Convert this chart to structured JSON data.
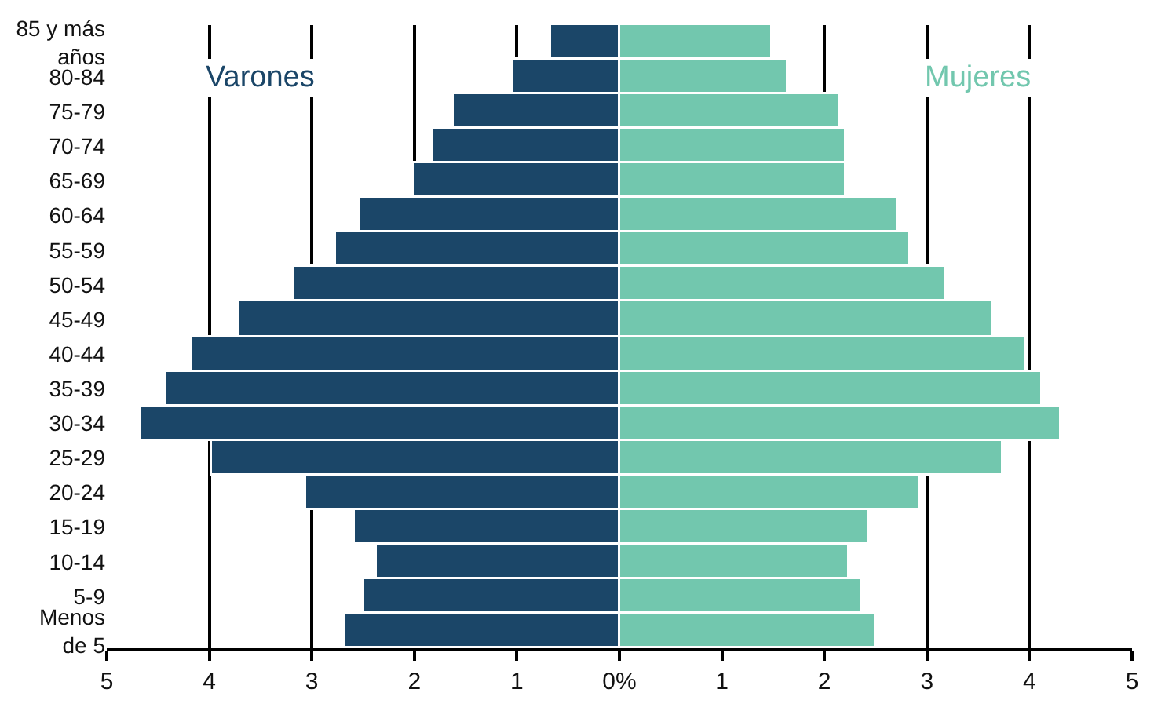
{
  "chart_data": {
    "type": "bar",
    "orientation": "horizontal",
    "stacked": true,
    "categories": [
      "85 y más\naños",
      "80-84",
      "75-79",
      "70-74",
      "65-69",
      "60-64",
      "55-59",
      "50-54",
      "45-49",
      "40-44",
      "35-39",
      "30-34",
      "25-29",
      "20-24",
      "15-19",
      "10-14",
      "5-9",
      "Menos\nde 5"
    ],
    "series": [
      {
        "name": "Varones",
        "color": "#1b4668",
        "values": [
          -0.67,
          -1.03,
          -1.61,
          -1.82,
          -2.0,
          -2.54,
          -2.76,
          -3.18,
          -3.72,
          -4.18,
          -4.42,
          -4.67,
          -3.97,
          -3.06,
          -2.58,
          -2.37,
          -2.49,
          -2.67
        ]
      },
      {
        "name": "Mujeres",
        "color": "#72c7ae",
        "values": [
          1.49,
          1.64,
          2.15,
          2.21,
          2.21,
          2.72,
          2.84,
          3.2,
          3.65,
          3.98,
          4.13,
          4.31,
          3.74,
          2.93,
          2.45,
          2.24,
          2.36,
          2.51
        ]
      }
    ],
    "xlim": [
      -5,
      5
    ],
    "xticks": [
      {
        "value": -5,
        "label": "5"
      },
      {
        "value": -4,
        "label": "4"
      },
      {
        "value": -3,
        "label": "3"
      },
      {
        "value": -2,
        "label": "2"
      },
      {
        "value": -1,
        "label": "1"
      },
      {
        "value": 0,
        "label": "0%"
      },
      1,
      2,
      3,
      4,
      5
    ],
    "grid": "x",
    "legend": false
  }
}
